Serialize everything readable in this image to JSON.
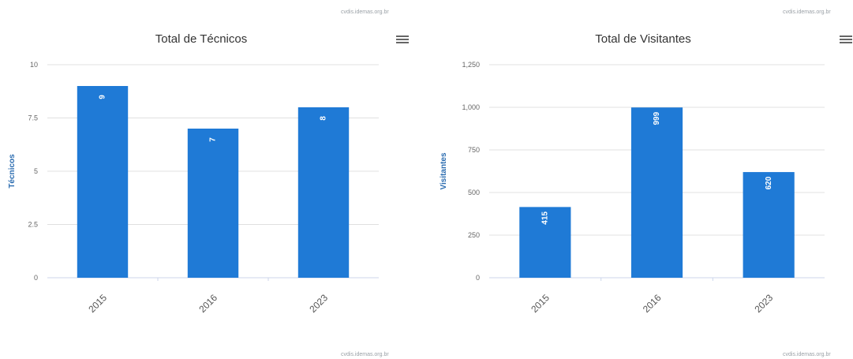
{
  "charts": [
    {
      "credit_top": "cvdis.idemas.org.br",
      "credit_bottom": "cvdis.idemas.org.br",
      "menu_icon": "hamburger-menu-icon"
    },
    {
      "credit_top": "cvdis.idemas.org.br",
      "credit_bottom": "cvdis.idemas.org.br",
      "menu_icon": "hamburger-menu-icon"
    }
  ],
  "chart_data": [
    {
      "type": "bar",
      "title": "Total de Técnicos",
      "xlabel": "",
      "ylabel": "Técnicos",
      "categories": [
        "2015",
        "2016",
        "2023"
      ],
      "values": [
        9,
        7,
        8
      ],
      "data_labels": [
        "9",
        "7",
        "8"
      ],
      "ylim": [
        0,
        10
      ],
      "yticks": [
        0,
        2.5,
        5,
        7.5,
        10
      ],
      "ytick_labels": [
        "0",
        "2.5",
        "5",
        "7.5",
        "10"
      ],
      "bar_color": "#1f7ad6",
      "grid": true
    },
    {
      "type": "bar",
      "title": "Total de Visitantes",
      "xlabel": "",
      "ylabel": "Visitantes",
      "categories": [
        "2015",
        "2016",
        "2023"
      ],
      "values": [
        415,
        999,
        620
      ],
      "data_labels": [
        "415",
        "999",
        "620"
      ],
      "ylim": [
        0,
        1250
      ],
      "yticks": [
        0,
        250,
        500,
        750,
        1000,
        1250
      ],
      "ytick_labels": [
        "0",
        "250",
        "500",
        "750",
        "1,000",
        "1,250"
      ],
      "bar_color": "#1f7ad6",
      "grid": true
    }
  ]
}
